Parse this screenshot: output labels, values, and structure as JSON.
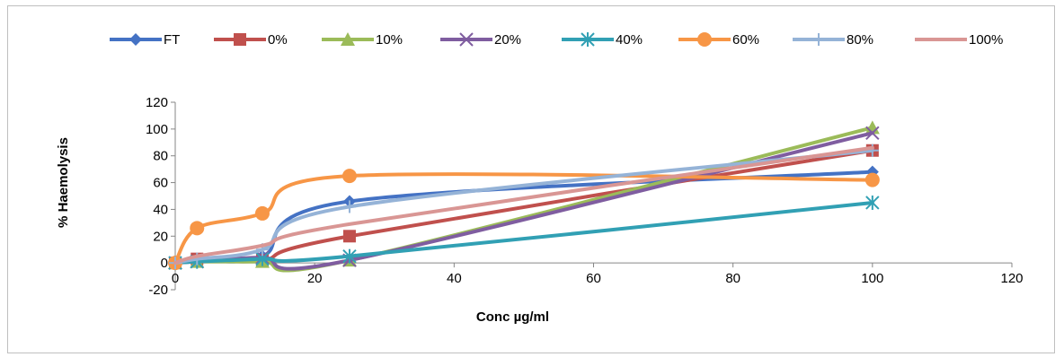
{
  "chart_data": {
    "type": "line",
    "title": "",
    "xlabel": "Conc µg/ml",
    "ylabel": "% Haemolysis",
    "xlim": [
      0,
      120
    ],
    "ylim": [
      -20,
      120
    ],
    "xticks": [
      "0",
      "20",
      "40",
      "60",
      "80",
      "100",
      "120"
    ],
    "yticks": [
      "-20",
      "0",
      "20",
      "40",
      "60",
      "80",
      "100",
      "120"
    ],
    "legend_position": "top",
    "grid": false,
    "smoothed": true,
    "series": [
      {
        "name": "FT",
        "color": "#4472C4",
        "marker": "diamond",
        "points": [
          [
            0,
            0
          ],
          [
            3.125,
            2
          ],
          [
            12.5,
            5
          ],
          [
            25,
            46
          ],
          [
            100,
            68
          ]
        ]
      },
      {
        "name": "0%",
        "color": "#C0504D",
        "marker": "square",
        "points": [
          [
            0,
            0
          ],
          [
            3.125,
            3
          ],
          [
            12.5,
            2
          ],
          [
            25,
            20
          ],
          [
            100,
            84
          ]
        ]
      },
      {
        "name": "10%",
        "color": "#9BBB59",
        "marker": "triangle",
        "points": [
          [
            0,
            0
          ],
          [
            3.125,
            1
          ],
          [
            12.5,
            1
          ],
          [
            25,
            2
          ],
          [
            100,
            101
          ]
        ]
      },
      {
        "name": "20%",
        "color": "#7F5DA0",
        "marker": "x",
        "points": [
          [
            0,
            0
          ],
          [
            3.125,
            1
          ],
          [
            12.5,
            4
          ],
          [
            25,
            2
          ],
          [
            100,
            97
          ]
        ]
      },
      {
        "name": "40%",
        "color": "#31A0B4",
        "marker": "star",
        "points": [
          [
            0,
            0
          ],
          [
            3.125,
            1
          ],
          [
            12.5,
            3
          ],
          [
            25,
            5
          ],
          [
            100,
            45
          ]
        ]
      },
      {
        "name": "60%",
        "color": "#F79646",
        "marker": "circle",
        "points": [
          [
            0,
            0
          ],
          [
            3.125,
            26
          ],
          [
            12.5,
            37
          ],
          [
            25,
            65
          ],
          [
            100,
            62
          ]
        ]
      },
      {
        "name": "80%",
        "color": "#95B3D7",
        "marker": "plus",
        "points": [
          [
            0,
            0
          ],
          [
            3.125,
            3
          ],
          [
            12.5,
            10
          ],
          [
            25,
            42
          ],
          [
            100,
            84
          ]
        ]
      },
      {
        "name": "100%",
        "color": "#D99694",
        "marker": "none",
        "points": [
          [
            0,
            0
          ],
          [
            3.125,
            5
          ],
          [
            12.5,
            13
          ],
          [
            25,
            29
          ],
          [
            100,
            86
          ]
        ]
      }
    ]
  }
}
